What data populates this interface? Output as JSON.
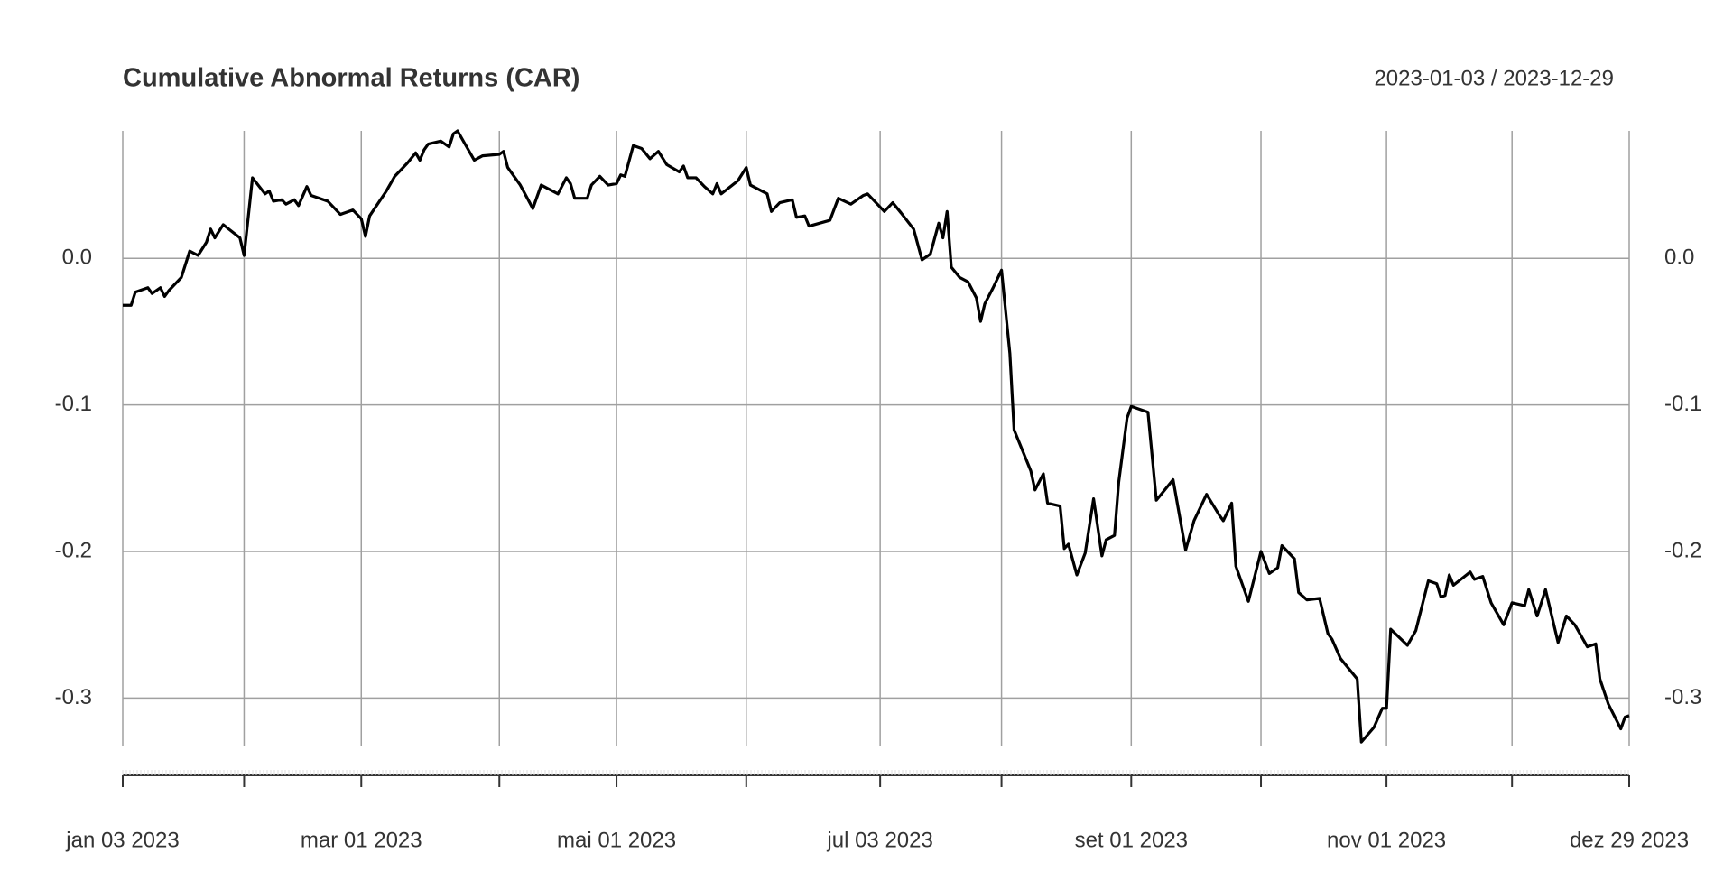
{
  "chart_data": {
    "type": "line",
    "title": "Cumulative Abnormal Returns (CAR)",
    "subtitle": "2023-01-03 / 2023-12-29",
    "color": "#000000",
    "grid": true,
    "yaxis_right": true,
    "xlim": [
      "2023-01-03",
      "2023-12-29"
    ],
    "ylim": [
      -0.333,
      0.087
    ],
    "yticks": [
      {
        "value": 0,
        "label": "0.0"
      },
      -0.1,
      -0.2,
      -0.3
    ],
    "xticks": [
      {
        "value": "2023-01-03",
        "label": "jan 03 2023"
      },
      {
        "value": "2023-03-01",
        "label": "mar 01 2023"
      },
      {
        "value": "2023-05-01",
        "label": "mai 01 2023"
      },
      {
        "value": "2023-07-03",
        "label": "jul 03 2023"
      },
      {
        "value": "2023-09-01",
        "label": "set 01 2023"
      },
      {
        "value": "2023-11-01",
        "label": "nov 01 2023"
      },
      {
        "value": "2023-12-29",
        "label": "dez 29 2023"
      }
    ],
    "xminorticks": [
      "2023-02-01",
      "2023-04-03",
      "2023-06-01",
      "2023-08-01",
      "2023-10-02",
      "2023-12-01"
    ],
    "x": [
      "2023-01-03",
      "2023-01-05",
      "2023-01-06",
      "2023-01-09",
      "2023-01-10",
      "2023-01-12",
      "2023-01-13",
      "2023-01-14",
      "2023-01-17",
      "2023-01-19",
      "2023-01-21",
      "2023-01-23",
      "2023-01-24",
      "2023-01-25",
      "2023-01-27",
      "2023-01-31",
      "2023-02-01",
      "2023-02-03",
      "2023-02-06",
      "2023-02-07",
      "2023-02-08",
      "2023-02-10",
      "2023-02-11",
      "2023-02-13",
      "2023-02-14",
      "2023-02-16",
      "2023-02-17",
      "2023-02-21",
      "2023-02-24",
      "2023-02-27",
      "2023-03-01",
      "2023-03-02",
      "2023-03-03",
      "2023-03-07",
      "2023-03-09",
      "2023-03-12",
      "2023-03-14",
      "2023-03-15",
      "2023-03-16",
      "2023-03-17",
      "2023-03-20",
      "2023-03-22",
      "2023-03-23",
      "2023-03-24",
      "2023-03-26",
      "2023-03-28",
      "2023-03-30",
      "2023-04-03",
      "2023-04-04",
      "2023-04-05",
      "2023-04-08",
      "2023-04-11",
      "2023-04-13",
      "2023-04-17",
      "2023-04-19",
      "2023-04-20",
      "2023-04-21",
      "2023-04-24",
      "2023-04-25",
      "2023-04-27",
      "2023-04-29",
      "2023-05-01",
      "2023-05-02",
      "2023-05-03",
      "2023-05-05",
      "2023-05-07",
      "2023-05-09",
      "2023-05-11",
      "2023-05-13",
      "2023-05-16",
      "2023-05-17",
      "2023-05-18",
      "2023-05-20",
      "2023-05-22",
      "2023-05-24",
      "2023-05-25",
      "2023-05-26",
      "2023-05-30",
      "2023-06-01",
      "2023-06-02",
      "2023-06-06",
      "2023-06-07",
      "2023-06-09",
      "2023-06-12",
      "2023-06-13",
      "2023-06-15",
      "2023-06-16",
      "2023-06-21",
      "2023-06-23",
      "2023-06-26",
      "2023-06-29",
      "2023-06-30",
      "2023-07-04",
      "2023-07-06",
      "2023-07-08",
      "2023-07-11",
      "2023-07-13",
      "2023-07-15",
      "2023-07-17",
      "2023-07-18",
      "2023-07-19",
      "2023-07-20",
      "2023-07-22",
      "2023-07-24",
      "2023-07-26",
      "2023-07-27",
      "2023-07-28",
      "2023-07-30",
      "2023-08-01",
      "2023-08-03",
      "2023-08-04",
      "2023-08-08",
      "2023-08-09",
      "2023-08-11",
      "2023-08-12",
      "2023-08-15",
      "2023-08-16",
      "2023-08-17",
      "2023-08-19",
      "2023-08-21",
      "2023-08-23",
      "2023-08-25",
      "2023-08-26",
      "2023-08-28",
      "2023-08-29",
      "2023-08-31",
      "2023-09-01",
      "2023-09-05",
      "2023-09-07",
      "2023-09-11",
      "2023-09-14",
      "2023-09-16",
      "2023-09-19",
      "2023-09-22",
      "2023-09-23",
      "2023-09-25",
      "2023-09-26",
      "2023-09-29",
      "2023-10-02",
      "2023-10-04",
      "2023-10-06",
      "2023-10-07",
      "2023-10-10",
      "2023-10-11",
      "2023-10-13",
      "2023-10-16",
      "2023-10-18",
      "2023-10-19",
      "2023-10-21",
      "2023-10-25",
      "2023-10-26",
      "2023-10-29",
      "2023-10-31",
      "2023-11-01",
      "2023-11-02",
      "2023-11-06",
      "2023-11-08",
      "2023-11-11",
      "2023-11-13",
      "2023-11-14",
      "2023-11-15",
      "2023-11-16",
      "2023-11-17",
      "2023-11-21",
      "2023-11-22",
      "2023-11-24",
      "2023-11-26",
      "2023-11-29",
      "2023-12-01",
      "2023-12-04",
      "2023-12-05",
      "2023-12-07",
      "2023-12-09",
      "2023-12-12",
      "2023-12-14",
      "2023-12-16",
      "2023-12-19",
      "2023-12-21",
      "2023-12-22",
      "2023-12-24",
      "2023-12-27",
      "2023-12-28",
      "2023-12-29"
    ],
    "values": [
      -0.032,
      -0.032,
      -0.023,
      -0.02,
      -0.024,
      -0.02,
      -0.026,
      -0.022,
      -0.013,
      0.005,
      0.002,
      0.011,
      0.02,
      0.014,
      0.023,
      0.014,
      0.002,
      0.055,
      0.044,
      0.046,
      0.039,
      0.04,
      0.037,
      0.04,
      0.036,
      0.049,
      0.043,
      0.039,
      0.03,
      0.033,
      0.027,
      0.015,
      0.029,
      0.046,
      0.056,
      0.065,
      0.072,
      0.067,
      0.074,
      0.078,
      0.08,
      0.076,
      0.085,
      0.087,
      0.077,
      0.067,
      0.07,
      0.071,
      0.073,
      0.062,
      0.05,
      0.034,
      0.05,
      0.044,
      0.055,
      0.051,
      0.041,
      0.041,
      0.05,
      0.056,
      0.05,
      0.051,
      0.057,
      0.056,
      0.077,
      0.075,
      0.068,
      0.073,
      0.064,
      0.059,
      0.063,
      0.055,
      0.055,
      0.049,
      0.044,
      0.051,
      0.044,
      0.053,
      0.062,
      0.05,
      0.044,
      0.032,
      0.038,
      0.04,
      0.028,
      0.029,
      0.022,
      0.026,
      0.041,
      0.037,
      0.043,
      0.044,
      0.032,
      0.038,
      0.031,
      0.02,
      -0.001,
      0.003,
      0.024,
      0.014,
      0.032,
      -0.006,
      -0.013,
      -0.016,
      -0.027,
      -0.043,
      -0.031,
      -0.02,
      -0.008,
      -0.065,
      -0.117,
      -0.145,
      -0.158,
      -0.147,
      -0.167,
      -0.169,
      -0.198,
      -0.195,
      -0.216,
      -0.201,
      -0.164,
      -0.203,
      -0.192,
      -0.189,
      -0.153,
      -0.109,
      -0.101,
      -0.105,
      -0.165,
      -0.151,
      -0.199,
      -0.179,
      -0.161,
      -0.175,
      -0.179,
      -0.167,
      -0.21,
      -0.234,
      -0.2,
      -0.215,
      -0.211,
      -0.196,
      -0.205,
      -0.228,
      -0.233,
      -0.232,
      -0.256,
      -0.26,
      -0.273,
      -0.287,
      -0.33,
      -0.32,
      -0.307,
      -0.307,
      -0.253,
      -0.264,
      -0.254,
      -0.22,
      -0.222,
      -0.231,
      -0.23,
      -0.216,
      -0.223,
      -0.214,
      -0.219,
      -0.217,
      -0.235,
      -0.25,
      -0.235,
      -0.237,
      -0.226,
      -0.244,
      -0.226,
      -0.262,
      -0.244,
      -0.25,
      -0.265,
      -0.263,
      -0.287,
      -0.304,
      -0.321,
      -0.313,
      -0.312
    ]
  }
}
